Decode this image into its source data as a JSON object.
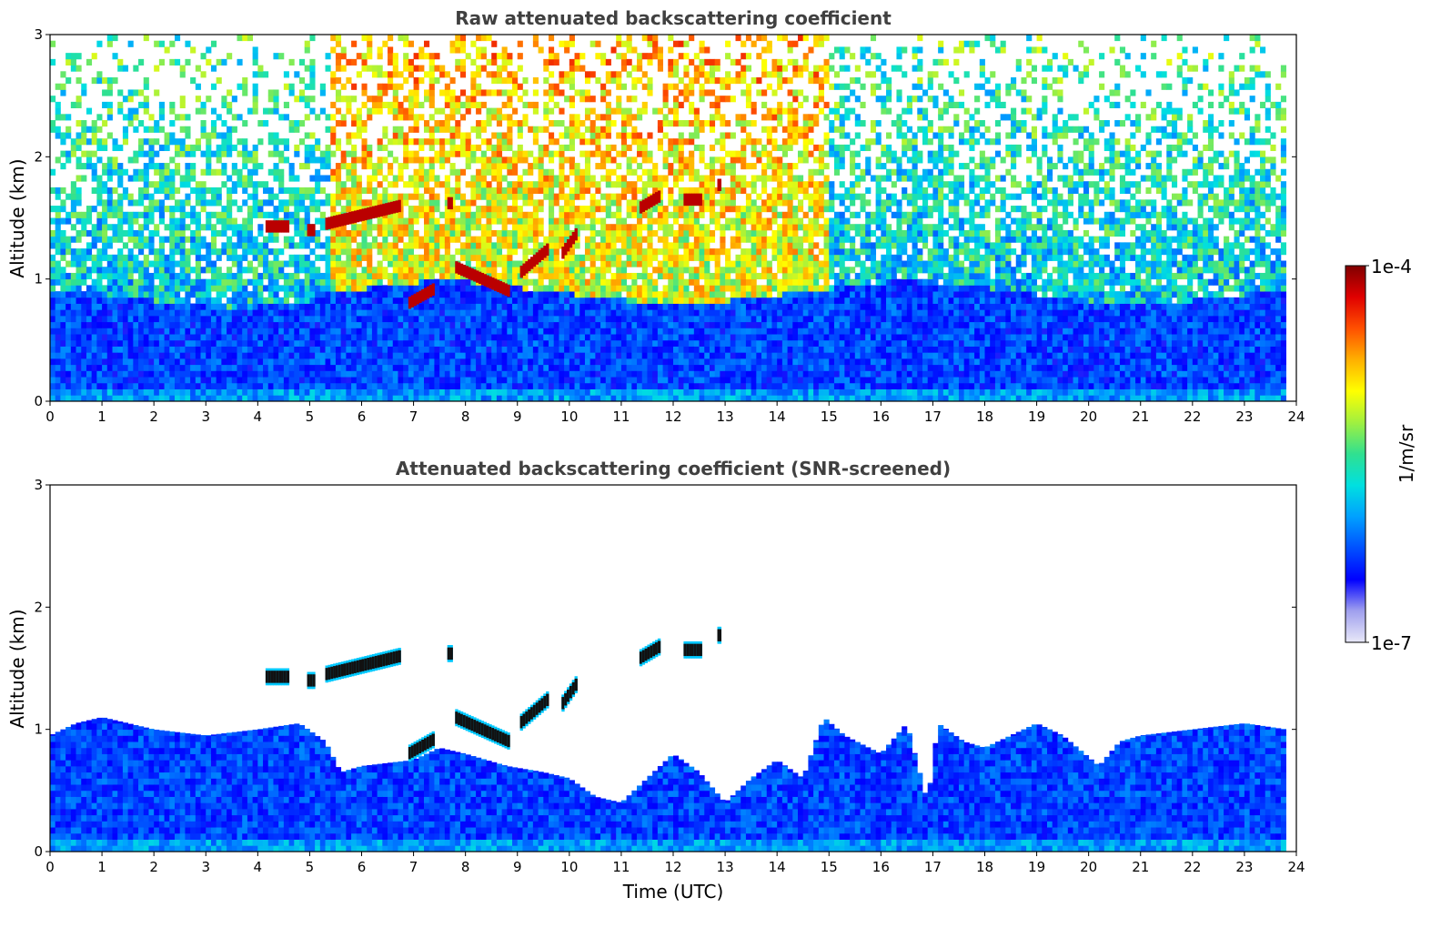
{
  "figure": {
    "colorbar": {
      "max_label": "1e-4",
      "min_label": "1e-7",
      "unit_label": "1/m/sr",
      "scale": "log",
      "range": [
        1e-07,
        0.0001
      ],
      "colormap": [
        "#e8e8f8",
        "#a0a0ee",
        "#0000ff",
        "#0050ff",
        "#00a0ff",
        "#00e0e0",
        "#30e090",
        "#a0f040",
        "#ffff00",
        "#ffb000",
        "#ff5000",
        "#e00000",
        "#800000"
      ]
    },
    "xlabel": "Time (UTC)"
  },
  "chart_data": [
    {
      "type": "heatmap",
      "title": "Raw attenuated backscattering coefficient",
      "xlabel": "",
      "ylabel": "Altitude (km)",
      "xlim": [
        0,
        24
      ],
      "ylim": [
        0,
        3
      ],
      "xticks": [
        "0",
        "1",
        "2",
        "3",
        "4",
        "5",
        "6",
        "7",
        "8",
        "9",
        "10",
        "11",
        "12",
        "13",
        "14",
        "15",
        "16",
        "17",
        "18",
        "19",
        "20",
        "21",
        "22",
        "23",
        "24"
      ],
      "yticks": [
        "0",
        "1",
        "2",
        "3"
      ],
      "grid": false,
      "layers": [
        {
          "name": "boundary_layer",
          "x_range": [
            0,
            23.8
          ],
          "top_altitude_km": [
            0.9,
            0.85,
            0.8,
            0.75,
            0.8,
            0.9,
            0.95,
            1.0,
            0.95,
            0.9,
            0.85,
            0.8,
            0.8,
            0.85,
            0.9,
            0.95,
            1.0,
            0.95,
            0.9,
            0.85,
            0.8,
            0.8,
            0.85,
            0.9
          ],
          "log10_value": -6.3
        },
        {
          "name": "noisy_upper",
          "x_range": [
            0,
            23.8
          ],
          "y_range": [
            0.9,
            3.0
          ],
          "log10_value": -5.8
        },
        {
          "name": "solar_noise_daytime",
          "x_range": [
            5.3,
            14.9
          ],
          "y_range": [
            1.0,
            3.0
          ],
          "log10_value": -5.1
        }
      ],
      "cloud_segments": [
        {
          "t_start": 4.15,
          "t_end": 4.6,
          "alt_km": 1.43,
          "log10_value": -4.0
        },
        {
          "t_start": 4.95,
          "t_end": 5.1,
          "alt_km": 1.4,
          "log10_value": -4.0
        },
        {
          "t_start": 5.3,
          "t_end": 6.75,
          "alt_km_start": 1.45,
          "alt_km_end": 1.6,
          "log10_value": -4.0
        },
        {
          "t_start": 7.65,
          "t_end": 7.75,
          "alt_km": 1.62,
          "log10_value": -4.0
        },
        {
          "t_start": 6.9,
          "t_end": 7.4,
          "alt_km_start": 0.8,
          "alt_km_end": 0.92,
          "log10_value": -4.0
        },
        {
          "t_start": 7.8,
          "t_end": 8.85,
          "alt_km_start": 1.1,
          "alt_km_end": 0.9,
          "log10_value": -4.0
        },
        {
          "t_start": 9.05,
          "t_end": 9.6,
          "alt_km_start": 1.05,
          "alt_km_end": 1.25,
          "log10_value": -4.0
        },
        {
          "t_start": 9.85,
          "t_end": 10.15,
          "alt_km_start": 1.2,
          "alt_km_end": 1.38,
          "log10_value": -4.0
        },
        {
          "t_start": 11.35,
          "t_end": 11.75,
          "alt_km_start": 1.58,
          "alt_km_end": 1.68,
          "log10_value": -4.0
        },
        {
          "t_start": 12.2,
          "t_end": 12.55,
          "alt_km": 1.65,
          "log10_value": -4.0
        },
        {
          "t_start": 12.85,
          "t_end": 12.92,
          "alt_km": 1.77,
          "log10_value": -4.0
        }
      ]
    },
    {
      "type": "heatmap",
      "title": "Attenuated backscattering coefficient (SNR-screened)",
      "xlabel": "Time (UTC)",
      "ylabel": "Altitude (km)",
      "xlim": [
        0,
        24
      ],
      "ylim": [
        0,
        3
      ],
      "xticks": [
        "0",
        "1",
        "2",
        "3",
        "4",
        "5",
        "6",
        "7",
        "8",
        "9",
        "10",
        "11",
        "12",
        "13",
        "14",
        "15",
        "16",
        "17",
        "18",
        "19",
        "20",
        "21",
        "22",
        "23",
        "24"
      ],
      "yticks": [
        "0",
        "1",
        "2",
        "3"
      ],
      "grid": false,
      "screened_top_altitude_km": [
        [
          0,
          0.95
        ],
        [
          0.5,
          1.05
        ],
        [
          1,
          1.1
        ],
        [
          2,
          1.0
        ],
        [
          3,
          0.95
        ],
        [
          4,
          1.0
        ],
        [
          4.8,
          1.05
        ],
        [
          5.3,
          0.9
        ],
        [
          5.6,
          0.65
        ],
        [
          6.0,
          0.7
        ],
        [
          7.0,
          0.75
        ],
        [
          7.5,
          0.85
        ],
        [
          8.0,
          0.8
        ],
        [
          8.8,
          0.7
        ],
        [
          9.5,
          0.65
        ],
        [
          10.0,
          0.6
        ],
        [
          10.5,
          0.45
        ],
        [
          11.0,
          0.4
        ],
        [
          11.5,
          0.6
        ],
        [
          12.0,
          0.8
        ],
        [
          12.5,
          0.65
        ],
        [
          13.0,
          0.4
        ],
        [
          13.5,
          0.6
        ],
        [
          14.0,
          0.75
        ],
        [
          14.5,
          0.6
        ],
        [
          14.9,
          1.1
        ],
        [
          15.3,
          0.95
        ],
        [
          16.0,
          0.8
        ],
        [
          16.5,
          1.05
        ],
        [
          16.9,
          0.4
        ],
        [
          17.1,
          1.05
        ],
        [
          17.6,
          0.9
        ],
        [
          18.0,
          0.85
        ],
        [
          18.5,
          0.95
        ],
        [
          19.0,
          1.05
        ],
        [
          19.5,
          0.95
        ],
        [
          20.2,
          0.7
        ],
        [
          20.6,
          0.9
        ],
        [
          21.0,
          0.95
        ],
        [
          22.0,
          1.0
        ],
        [
          23.0,
          1.05
        ],
        [
          23.8,
          1.0
        ]
      ],
      "cloud_segments": [
        {
          "t_start": 4.15,
          "t_end": 4.6,
          "alt_km": 1.43,
          "log10_value": -4.0
        },
        {
          "t_start": 4.95,
          "t_end": 5.1,
          "alt_km": 1.4,
          "log10_value": -4.0
        },
        {
          "t_start": 5.3,
          "t_end": 6.75,
          "alt_km_start": 1.45,
          "alt_km_end": 1.6,
          "log10_value": -4.0
        },
        {
          "t_start": 7.65,
          "t_end": 7.75,
          "alt_km": 1.62,
          "log10_value": -4.0
        },
        {
          "t_start": 6.9,
          "t_end": 7.4,
          "alt_km_start": 0.8,
          "alt_km_end": 0.92,
          "log10_value": -4.0
        },
        {
          "t_start": 7.8,
          "t_end": 8.85,
          "alt_km_start": 1.1,
          "alt_km_end": 0.9,
          "log10_value": -4.0
        },
        {
          "t_start": 9.05,
          "t_end": 9.6,
          "alt_km_start": 1.05,
          "alt_km_end": 1.25,
          "log10_value": -4.0
        },
        {
          "t_start": 9.85,
          "t_end": 10.15,
          "alt_km_start": 1.2,
          "alt_km_end": 1.38,
          "log10_value": -4.0
        },
        {
          "t_start": 11.35,
          "t_end": 11.75,
          "alt_km_start": 1.58,
          "alt_km_end": 1.68,
          "log10_value": -4.0
        },
        {
          "t_start": 12.2,
          "t_end": 12.55,
          "alt_km": 1.65,
          "log10_value": -4.0
        },
        {
          "t_start": 12.85,
          "t_end": 12.92,
          "alt_km": 1.77,
          "log10_value": -4.0
        }
      ]
    }
  ]
}
